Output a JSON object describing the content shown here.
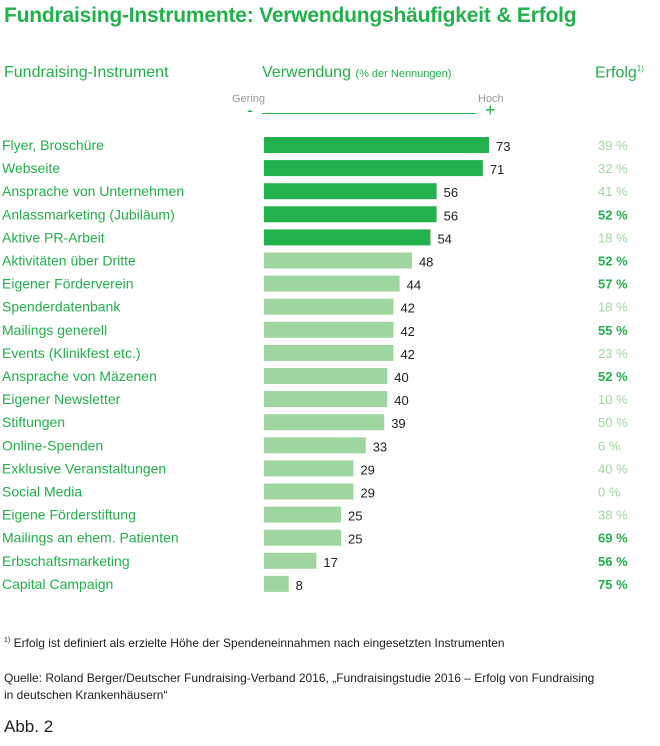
{
  "title": "Fundraising-Instrumente: Verwendungshäufigkeit & Erfolg",
  "headers": {
    "instrument": "Fundraising-Instrument",
    "usage": "Verwendung",
    "usage_unit": "(% der Nennungen)",
    "success": "Erfolg",
    "success_note": "1)"
  },
  "scale": {
    "low": "Gering",
    "high": "Hoch",
    "minus": "-",
    "plus": "+"
  },
  "colors": {
    "dark": "#22b14c",
    "light": "#9fd69f",
    "text": "#22b14c"
  },
  "chart_data": {
    "type": "bar",
    "orientation": "horizontal",
    "categories": [
      "Flyer, Broschüre",
      "Webseite",
      "Ansprache von Unternehmen",
      "Anlassmarketing (Jubiläum)",
      "Aktive PR-Arbeit",
      "Aktivitäten über Dritte",
      "Eigener Förderverein",
      "Spenderdatenbank",
      "Mailings generell",
      "Events (Klinikfest etc.)",
      "Ansprache von Mäzenen",
      "Eigener Newsletter",
      "Stiftungen",
      "Online-Spenden",
      "Exklusive Veranstaltungen",
      "Social Media",
      "Eigene Förderstiftung",
      "Mailings an ehem. Patienten",
      "Erbschaftsmarketing",
      "Capital Campaign"
    ],
    "values": [
      73,
      71,
      56,
      56,
      54,
      48,
      44,
      42,
      42,
      42,
      40,
      40,
      39,
      33,
      29,
      29,
      25,
      25,
      17,
      8
    ],
    "success_labels": [
      "39 %",
      "32 %",
      "41 %",
      "52 %",
      "18 %",
      "52 %",
      "57 %",
      "18 %",
      "55 %",
      "23 %",
      "52 %",
      "10 %",
      "50 %",
      "6 %",
      "40 %",
      "0 %",
      "38 %",
      "69 %",
      "56 %",
      "75 %"
    ],
    "success_bold": [
      false,
      false,
      false,
      true,
      false,
      true,
      true,
      false,
      true,
      false,
      true,
      false,
      false,
      false,
      false,
      false,
      false,
      true,
      true,
      true
    ],
    "bar_highlight": [
      true,
      true,
      true,
      true,
      true,
      false,
      false,
      false,
      false,
      false,
      false,
      false,
      false,
      false,
      false,
      false,
      false,
      false,
      false,
      false
    ],
    "xlim": [
      0,
      73
    ]
  },
  "footnote": "Erfolg ist definiert als erzielte Höhe der Spendeneinnahmen nach eingesetzten Instrumenten",
  "footnote_mark": "1)",
  "source_line1": "Quelle: Roland Berger/Deutscher Fundraising-Verband 2016, „Fundraisingstudie 2016 – Erfolg von Fundraising",
  "source_line2": "in deutschen Krankenhäusern“",
  "figure_label": "Abb. 2"
}
